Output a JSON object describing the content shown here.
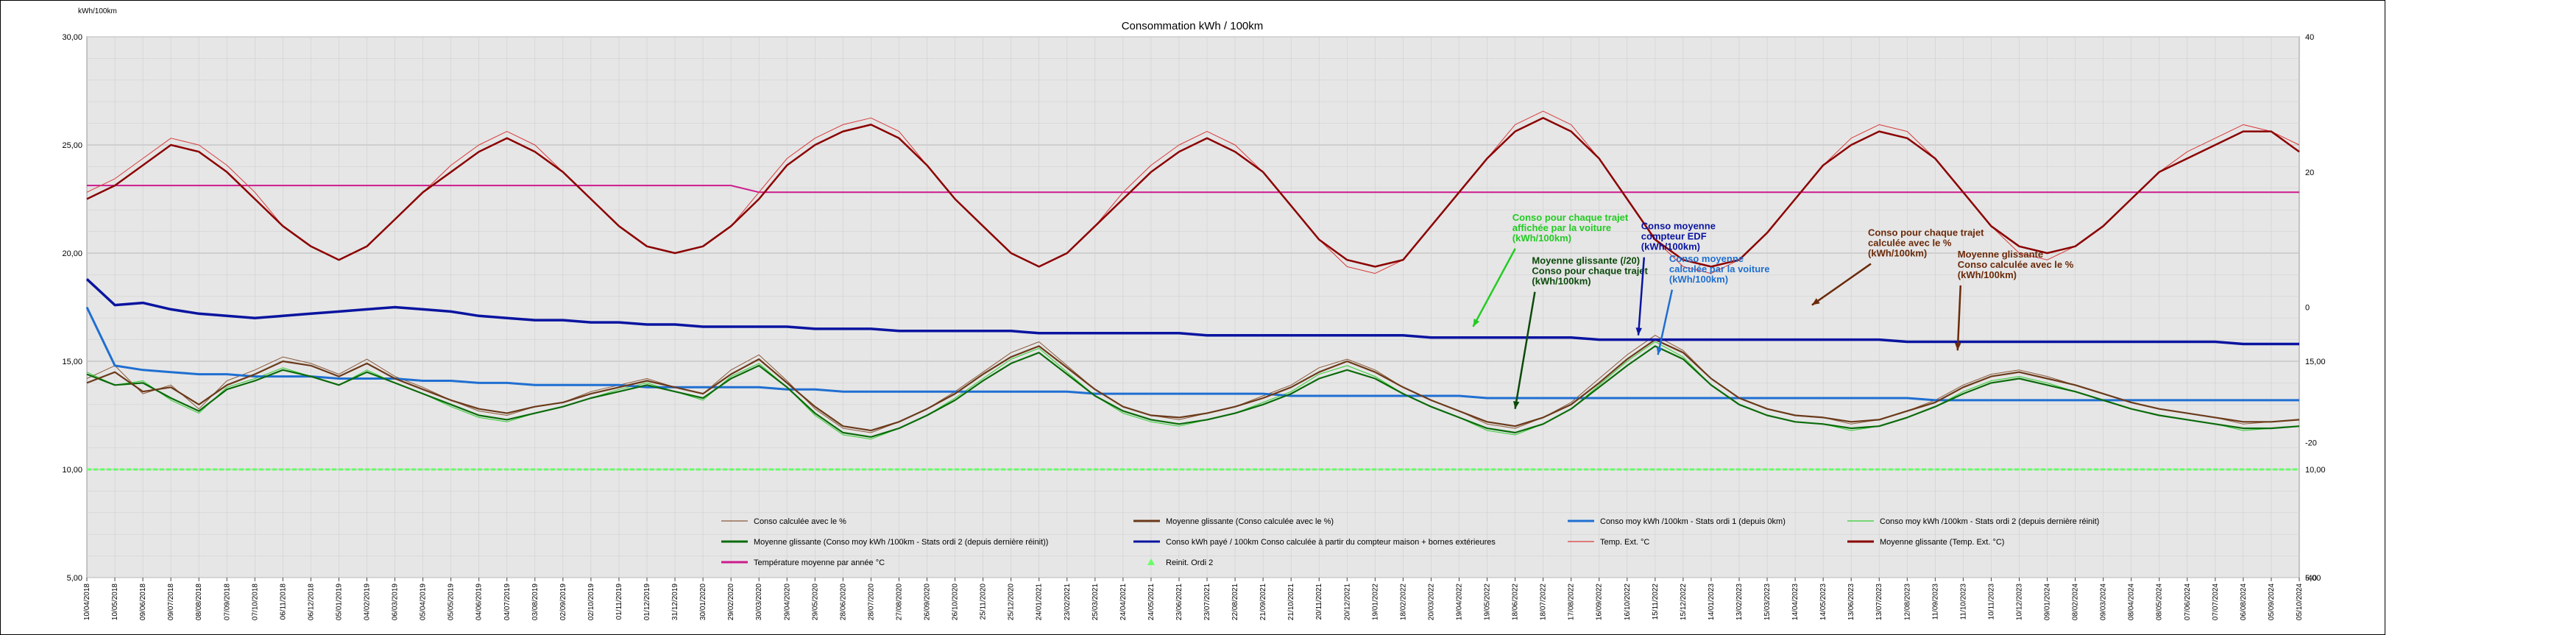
{
  "chart_data": {
    "type": "line",
    "title": "Consommation kWh / 100km",
    "ylabel": "kWh/100km",
    "ylim": [
      5,
      30
    ],
    "y_ticks": [
      "5,00",
      "10,00",
      "15,00",
      "20,00",
      "25,00",
      "30,00"
    ],
    "y2lim": [
      -40,
      40
    ],
    "y2_ticks_left": [
      "-40",
      "-20",
      "0",
      "20",
      "40"
    ],
    "y2_ticks_right": [
      "5,00",
      "10,00",
      "15,00"
    ],
    "grid": true,
    "legend_position": "bottom",
    "x_dates": [
      "10/04/2018",
      "10/05/2018",
      "09/06/2018",
      "09/07/2018",
      "08/08/2018",
      "07/09/2018",
      "07/10/2018",
      "06/11/2018",
      "06/12/2018",
      "05/01/2019",
      "04/02/2019",
      "06/03/2019",
      "05/04/2019",
      "05/05/2019",
      "04/06/2019",
      "04/07/2019",
      "03/08/2019",
      "02/09/2019",
      "02/10/2019",
      "01/11/2019",
      "01/12/2019",
      "31/12/2019",
      "30/01/2020",
      "29/02/2020",
      "30/03/2020",
      "29/04/2020",
      "29/05/2020",
      "28/06/2020",
      "28/07/2020",
      "27/08/2020",
      "26/09/2020",
      "26/10/2020",
      "25/11/2020",
      "25/12/2020",
      "24/01/2021",
      "23/02/2021",
      "25/03/2021",
      "24/04/2021",
      "24/05/2021",
      "23/06/2021",
      "23/07/2021",
      "22/08/2021",
      "21/09/2021",
      "21/10/2021",
      "20/11/2021",
      "20/12/2021",
      "19/01/2022",
      "18/02/2022",
      "20/03/2022",
      "19/04/2022",
      "19/05/2022",
      "18/06/2022",
      "18/07/2022",
      "17/08/2022",
      "16/09/2022",
      "16/10/2022",
      "15/11/2022",
      "15/12/2022",
      "14/01/2023",
      "13/02/2023",
      "15/03/2023",
      "14/04/2023",
      "14/05/2023",
      "13/06/2023",
      "13/07/2023",
      "12/08/2023",
      "11/09/2023",
      "11/10/2023",
      "10/11/2023",
      "10/12/2023",
      "09/01/2024",
      "08/02/2024",
      "09/03/2024",
      "08/04/2024",
      "08/05/2024",
      "07/06/2024",
      "07/07/2024",
      "06/08/2024",
      "05/09/2024",
      "05/10/2024"
    ],
    "series": [
      {
        "name": "Conso calculée avec le %",
        "color": "#8b5a3c",
        "axis": "left",
        "values": [
          14.2,
          14.8,
          13.5,
          13.9,
          12.8,
          14.1,
          14.6,
          15.2,
          14.9,
          14.4,
          15.1,
          14.3,
          13.8,
          13.2,
          12.7,
          12.5,
          12.9,
          13.1,
          13.6,
          13.9,
          14.2,
          13.8,
          13.5,
          14.6,
          15.3,
          14.1,
          12.8,
          11.9,
          11.7,
          12.2,
          12.8,
          13.6,
          14.5,
          15.4,
          15.9,
          14.8,
          13.7,
          12.9,
          12.5,
          12.3,
          12.6,
          12.9,
          13.4,
          13.9,
          14.7,
          15.1,
          14.6,
          13.8,
          13.2,
          12.7,
          12.1,
          11.9,
          12.4,
          13.1,
          14.2,
          15.3,
          16.2,
          15.5,
          14.2,
          13.3,
          12.8,
          12.5,
          12.4,
          12.1,
          12.3,
          12.7,
          13.2,
          13.9,
          14.4,
          14.6,
          14.3,
          13.9,
          13.5,
          13.1,
          12.8,
          12.6,
          12.4,
          12.1,
          12.2,
          12.3
        ]
      },
      {
        "name": "Moyenne glissante (Conso calculée avec le %)",
        "color": "#6b3a1a",
        "axis": "left",
        "values": [
          14.0,
          14.5,
          13.6,
          13.8,
          13.0,
          13.9,
          14.4,
          15.0,
          14.8,
          14.3,
          14.9,
          14.2,
          13.7,
          13.2,
          12.8,
          12.6,
          12.9,
          13.1,
          13.5,
          13.8,
          14.1,
          13.8,
          13.5,
          14.4,
          15.1,
          14.0,
          12.9,
          12.0,
          11.8,
          12.2,
          12.8,
          13.5,
          14.4,
          15.2,
          15.7,
          14.7,
          13.7,
          12.9,
          12.5,
          12.4,
          12.6,
          12.9,
          13.3,
          13.8,
          14.5,
          15.0,
          14.5,
          13.8,
          13.2,
          12.7,
          12.2,
          12.0,
          12.4,
          13.0,
          14.0,
          15.1,
          16.0,
          15.4,
          14.2,
          13.3,
          12.8,
          12.5,
          12.4,
          12.2,
          12.3,
          12.7,
          13.1,
          13.8,
          14.3,
          14.5,
          14.2,
          13.9,
          13.5,
          13.1,
          12.8,
          12.6,
          12.4,
          12.2,
          12.2,
          12.3
        ]
      },
      {
        "name": "Conso moy kWh /100km - Stats ordi 1 (depuis 0km)",
        "color": "#1f6fd1",
        "axis": "left",
        "values": [
          17.5,
          14.8,
          14.6,
          14.5,
          14.4,
          14.4,
          14.3,
          14.3,
          14.3,
          14.2,
          14.2,
          14.2,
          14.1,
          14.1,
          14.0,
          14.0,
          13.9,
          13.9,
          13.9,
          13.9,
          13.8,
          13.8,
          13.8,
          13.8,
          13.8,
          13.7,
          13.7,
          13.6,
          13.6,
          13.6,
          13.6,
          13.6,
          13.6,
          13.6,
          13.6,
          13.6,
          13.5,
          13.5,
          13.5,
          13.5,
          13.5,
          13.5,
          13.5,
          13.4,
          13.4,
          13.4,
          13.4,
          13.4,
          13.4,
          13.4,
          13.3,
          13.3,
          13.3,
          13.3,
          13.3,
          13.3,
          13.3,
          13.3,
          13.3,
          13.3,
          13.3,
          13.3,
          13.3,
          13.3,
          13.3,
          13.3,
          13.2,
          13.2,
          13.2,
          13.2,
          13.2,
          13.2,
          13.2,
          13.2,
          13.2,
          13.2,
          13.2,
          13.2,
          13.2,
          13.2
        ]
      },
      {
        "name": "Conso moy kWh /100km - Stats ordi 2 (depuis dernière réinit)",
        "color": "#33cc33",
        "axis": "left",
        "values": [
          14.5,
          13.9,
          14.1,
          13.2,
          12.6,
          13.8,
          14.2,
          14.7,
          14.3,
          13.9,
          14.6,
          14.0,
          13.5,
          12.9,
          12.4,
          12.2,
          12.6,
          12.9,
          13.3,
          13.7,
          14.0,
          13.6,
          13.2,
          14.3,
          14.9,
          13.8,
          12.5,
          11.6,
          11.4,
          11.9,
          12.5,
          13.3,
          14.2,
          15.1,
          15.6,
          14.5,
          13.4,
          12.6,
          12.2,
          12.0,
          12.3,
          12.6,
          13.1,
          13.6,
          14.4,
          14.8,
          14.3,
          13.5,
          12.9,
          12.4,
          11.8,
          11.6,
          12.1,
          12.8,
          13.9,
          15.0,
          15.9,
          15.2,
          13.9,
          13.0,
          12.5,
          12.2,
          12.1,
          11.8,
          12.0,
          12.4,
          12.9,
          13.6,
          14.1,
          14.3,
          14.0,
          13.6,
          13.2,
          12.8,
          12.5,
          12.3,
          12.1,
          11.8,
          11.9,
          12.0
        ]
      },
      {
        "name": "Moyenne glissante (Conso moy kWh /100km - Stats ordi 2 (depuis dernière réinit))",
        "color": "#0b6b0b",
        "axis": "left",
        "values": [
          14.4,
          13.9,
          14.0,
          13.3,
          12.7,
          13.7,
          14.1,
          14.6,
          14.3,
          13.9,
          14.5,
          14.0,
          13.5,
          13.0,
          12.5,
          12.3,
          12.6,
          12.9,
          13.3,
          13.6,
          13.9,
          13.6,
          13.3,
          14.2,
          14.8,
          13.8,
          12.6,
          11.7,
          11.5,
          11.9,
          12.5,
          13.2,
          14.1,
          14.9,
          15.4,
          14.4,
          13.4,
          12.7,
          12.3,
          12.1,
          12.3,
          12.6,
          13.0,
          13.5,
          14.2,
          14.6,
          14.2,
          13.5,
          12.9,
          12.4,
          11.9,
          11.7,
          12.1,
          12.8,
          13.8,
          14.8,
          15.7,
          15.1,
          13.9,
          13.0,
          12.5,
          12.2,
          12.1,
          11.9,
          12.0,
          12.4,
          12.9,
          13.5,
          14.0,
          14.2,
          13.9,
          13.6,
          13.2,
          12.8,
          12.5,
          12.3,
          12.1,
          11.9,
          11.9,
          12.0
        ]
      },
      {
        "name": "Conso kWh payé / 100km Conso calculée à partir du compteur maison + bornes extérieures",
        "color": "#0a14a0",
        "axis": "left",
        "values": [
          18.8,
          17.6,
          17.7,
          17.4,
          17.2,
          17.1,
          17.0,
          17.1,
          17.2,
          17.3,
          17.4,
          17.5,
          17.4,
          17.3,
          17.1,
          17.0,
          16.9,
          16.9,
          16.8,
          16.8,
          16.7,
          16.7,
          16.6,
          16.6,
          16.6,
          16.6,
          16.5,
          16.5,
          16.5,
          16.4,
          16.4,
          16.4,
          16.4,
          16.4,
          16.3,
          16.3,
          16.3,
          16.3,
          16.3,
          16.3,
          16.2,
          16.2,
          16.2,
          16.2,
          16.2,
          16.2,
          16.2,
          16.2,
          16.1,
          16.1,
          16.1,
          16.1,
          16.1,
          16.1,
          16.0,
          16.0,
          16.0,
          16.0,
          16.0,
          16.0,
          16.0,
          16.0,
          16.0,
          16.0,
          16.0,
          15.9,
          15.9,
          15.9,
          15.9,
          15.9,
          15.9,
          15.9,
          15.9,
          15.9,
          15.9,
          15.9,
          15.9,
          15.8,
          15.8,
          15.8
        ]
      },
      {
        "name": "Temp. Ext. °C",
        "color": "#d93a3a",
        "axis": "right",
        "values": [
          17,
          19,
          22,
          25,
          24,
          21,
          17,
          12,
          9,
          7,
          9,
          13,
          17,
          21,
          24,
          26,
          24,
          20,
          16,
          12,
          9,
          8,
          9,
          12,
          17,
          22,
          25,
          27,
          28,
          26,
          21,
          16,
          12,
          8,
          6,
          8,
          12,
          17,
          21,
          24,
          26,
          24,
          20,
          15,
          10,
          6,
          5,
          7,
          12,
          17,
          22,
          27,
          29,
          27,
          22,
          16,
          10,
          6,
          5,
          7,
          11,
          16,
          21,
          25,
          27,
          26,
          22,
          17,
          12,
          8,
          7,
          9,
          12,
          16,
          20,
          23,
          25,
          27,
          26,
          24
        ]
      },
      {
        "name": "Moyenne glissante (Temp. Ext. °C)",
        "color": "#8b0000",
        "axis": "right",
        "values": [
          16,
          18,
          21,
          24,
          23,
          20,
          16,
          12,
          9,
          7,
          9,
          13,
          17,
          20,
          23,
          25,
          23,
          20,
          16,
          12,
          9,
          8,
          9,
          12,
          16,
          21,
          24,
          26,
          27,
          25,
          21,
          16,
          12,
          8,
          6,
          8,
          12,
          16,
          20,
          23,
          25,
          23,
          20,
          15,
          10,
          7,
          6,
          7,
          12,
          17,
          22,
          26,
          28,
          26,
          22,
          16,
          10,
          7,
          6,
          7,
          11,
          16,
          21,
          24,
          26,
          25,
          22,
          17,
          12,
          9,
          8,
          9,
          12,
          16,
          20,
          22,
          24,
          26,
          26,
          23
        ]
      },
      {
        "name": "Température moyenne par année °C",
        "color": "#cc1b8c",
        "axis": "right",
        "values": [
          18,
          18,
          18,
          18,
          18,
          18,
          18,
          18,
          18,
          18,
          18,
          18,
          18,
          18,
          18,
          18,
          18,
          18,
          18,
          18,
          18,
          18,
          18,
          18,
          17,
          17,
          17,
          17,
          17,
          17,
          17,
          17,
          17,
          17,
          17,
          17,
          17,
          17,
          17,
          17,
          17,
          17,
          17,
          17,
          17,
          17,
          17,
          17,
          17,
          17,
          17,
          17,
          17,
          17,
          17,
          17,
          17,
          17,
          17,
          17,
          17,
          17,
          17,
          17,
          17,
          17,
          17,
          17,
          17,
          17,
          17,
          17,
          17,
          17,
          17,
          17,
          17,
          17,
          17,
          17
        ]
      },
      {
        "name": "Reinit. Ordi 2",
        "color": "#66ff66",
        "axis": "left",
        "values": [
          10,
          10,
          10,
          10,
          10,
          10,
          10,
          10,
          10,
          10,
          10,
          10,
          10,
          10,
          10,
          10,
          10,
          10,
          10,
          10,
          10,
          10,
          10,
          10,
          10,
          10,
          10,
          10,
          10,
          10,
          10,
          10,
          10,
          10,
          10,
          10,
          10,
          10,
          10,
          10,
          10,
          10,
          10,
          10,
          10,
          10,
          10,
          10,
          10,
          10,
          10,
          10,
          10,
          10,
          10,
          10,
          10,
          10,
          10,
          10,
          10,
          10,
          10,
          10,
          10,
          10,
          10,
          10,
          10,
          10,
          10,
          10,
          10,
          10,
          10,
          10,
          10,
          10,
          10,
          10
        ]
      }
    ],
    "annotations": [
      {
        "lines": [
          "Conso pour chaque trajet",
          "affichée par la voiture",
          "(kWh/100km)"
        ],
        "color": "#22cc22",
        "x_index": 50.9,
        "y": 21.5,
        "arrow_to_index": 49.5,
        "arrow_to_y": 16.6
      },
      {
        "lines": [
          "Moyenne glissante (/20)",
          "Conso pour chaque trajet",
          "(kWh/100km)"
        ],
        "color": "#0b4a0b",
        "x_index": 51.6,
        "y": 19.5,
        "arrow_to_index": 51.0,
        "arrow_to_y": 12.8
      },
      {
        "lines": [
          "Conso moyenne",
          "compteur EDF",
          "(kWh/100km)"
        ],
        "color": "#0a14a0",
        "x_index": 55.5,
        "y": 21.1,
        "arrow_to_index": 55.4,
        "arrow_to_y": 16.2
      },
      {
        "lines": [
          "Conso moyenne",
          "calculée par la voiture",
          "(kWh/100km)"
        ],
        "color": "#1f6fd1",
        "x_index": 56.5,
        "y": 19.6,
        "arrow_to_index": 56.1,
        "arrow_to_y": 15.3
      },
      {
        "lines": [
          "Conso pour chaque trajet",
          "calculée avec le %",
          "(kWh/100km)"
        ],
        "color": "#6b2a0a",
        "x_index": 63.6,
        "y": 20.8,
        "arrow_to_index": 61.6,
        "arrow_to_y": 17.6
      },
      {
        "lines": [
          "Moyenne glissante",
          "Conso calculée avec le %",
          "(kWh/100km)"
        ],
        "color": "#6b2a0a",
        "x_index": 66.8,
        "y": 19.8,
        "arrow_to_index": 66.8,
        "arrow_to_y": 15.5
      }
    ]
  }
}
